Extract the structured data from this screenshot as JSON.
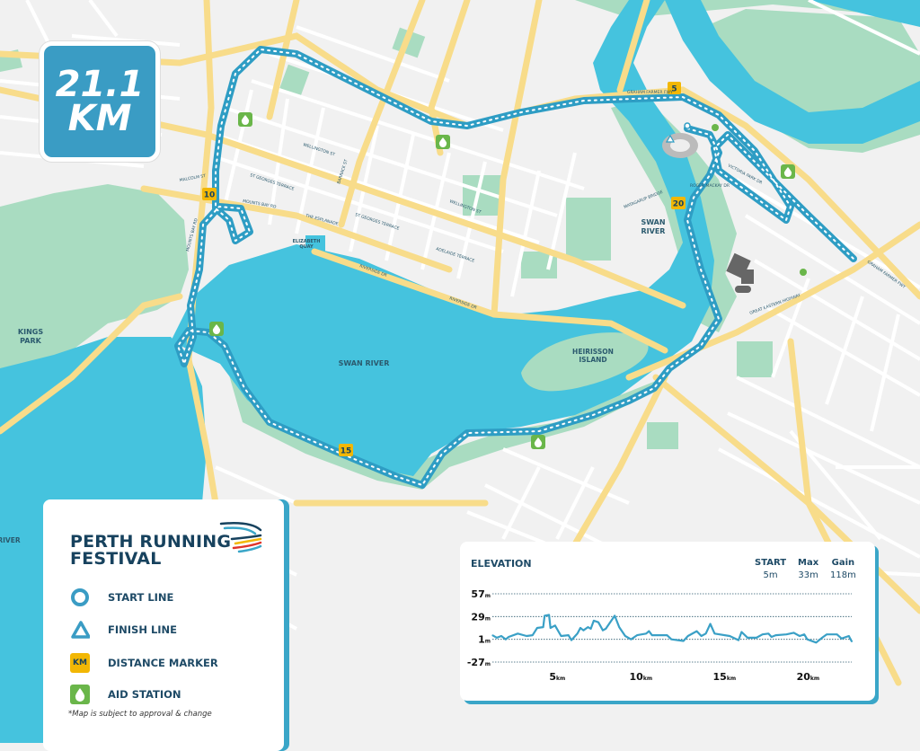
{
  "badge": {
    "distance": "21.1",
    "unit": "KM"
  },
  "colors": {
    "water": "#45c3de",
    "park": "#a9dcc1",
    "road": "#f8dc8a",
    "route": "#2e9dc4",
    "marker": "#f2b705",
    "aid": "#6ab64a",
    "navy": "#17425e"
  },
  "map_labels": {
    "kings_park": [
      "KINGS",
      "PARK"
    ],
    "swan_river_main": "SWAN RIVER",
    "swan_river_north": [
      "SWAN",
      "RIVER"
    ],
    "heirisson_island": [
      "HEIRISSON",
      "ISLAND"
    ],
    "elizabeth_quay": [
      "ELIZABETH",
      "QUAY"
    ],
    "river_left": "RIVER",
    "streets": {
      "riverside_dr_1": "RIVERSIDE DR",
      "riverside_dr_2": "RIVERSIDE DR",
      "wellington_st_1": "WELLINGTON ST",
      "wellington_st_2": "WELLINGTON ST",
      "st_georges_tce": "ST GEORGES TERRACE",
      "st_georges_tce_2": "ST GEORGES TERRACE",
      "mounts_bay_rd": "MOUNTS BAY RD",
      "the_esplanade": "THE ESPLANADE",
      "adelaide_tce": "ADELAIDE TERRACE",
      "barrack_st": "BARRACK ST",
      "graham_farmer_fwy": "GRAHAM FARMER FWY",
      "graham_farmer_fwy_2": "GRAHAM FARMER FWY",
      "great_eastern_hwy": "GREAT EASTERN HIGHWAY",
      "victoria_park_dr": "VICTORIA PARK DR",
      "matagarup_bridge": "MATAGARUP BRIDGE",
      "roger_mackay_dr": "ROGER MACKAY DR",
      "malcolm_st": "MALCOLM ST",
      "mounts_bay_rd_2": "MOUNTS BAY RD"
    }
  },
  "distance_markers": [
    "5",
    "10",
    "15",
    "20"
  ],
  "legend": {
    "logo_line1": "PERTH RUNNING",
    "logo_line2": "FESTIVAL",
    "items": [
      {
        "icon": "circle-outline-icon",
        "label": "START LINE"
      },
      {
        "icon": "triangle-outline-icon",
        "label": "FINISH LINE"
      },
      {
        "icon": "km-marker-icon",
        "icon_text": "KM",
        "label": "DISTANCE MARKER"
      },
      {
        "icon": "water-drop-icon",
        "label": "AID STATION"
      }
    ],
    "note": "*Map is subject to approval & change"
  },
  "elevation": {
    "title": "ELEVATION",
    "stats": [
      {
        "label": "START",
        "value": "5m"
      },
      {
        "label": "Max",
        "value": "33m"
      },
      {
        "label": "Gain",
        "value": "118m"
      }
    ]
  },
  "chart_data": {
    "type": "line",
    "title": "ELEVATION",
    "xlabel": "",
    "ylabel": "",
    "x_unit": "km",
    "y_unit": "m",
    "xlim": [
      0.9,
      22.4
    ],
    "ylim": [
      -27,
      57
    ],
    "y_ticks": [
      57,
      29,
      1,
      -27
    ],
    "x_ticks": [
      5,
      10,
      15,
      20
    ],
    "grid": "horizontal dotted",
    "x": [
      0.9,
      1.17,
      1.44,
      1.7,
      1.88,
      2.42,
      2.95,
      3.31,
      3.58,
      3.94,
      4.03,
      4.29,
      4.38,
      4.65,
      5.01,
      5.45,
      5.63,
      5.99,
      6.17,
      6.35,
      6.62,
      6.79,
      6.97,
      7.24,
      7.51,
      7.69,
      8.22,
      8.49,
      8.85,
      9.2,
      9.56,
      10.1,
      10.27,
      10.45,
      10.81,
      11.35,
      11.61,
      12.33,
      12.6,
      13.13,
      13.4,
      13.67,
      13.94,
      14.2,
      15.1,
      15.63,
      15.81,
      16.17,
      16.7,
      17.06,
      17.42,
      17.6,
      17.86,
      18.49,
      18.93,
      19.29,
      19.56,
      19.74,
      20.27,
      20.63,
      20.9,
      21.52,
      21.79,
      22.23,
      22.41
    ],
    "y": [
      6,
      3,
      5,
      1,
      4,
      8,
      5,
      6,
      15,
      16,
      30,
      31,
      15,
      18,
      5,
      6,
      0,
      8,
      15,
      12,
      16,
      14,
      24,
      22,
      12,
      14,
      30,
      16,
      5,
      1,
      6,
      8,
      11,
      6,
      6,
      6,
      1,
      -1,
      5,
      11,
      5,
      8,
      20,
      8,
      5,
      0,
      10,
      3,
      3,
      7,
      8,
      4,
      6,
      7,
      9,
      5,
      7,
      1,
      -3,
      3,
      7,
      7,
      2,
      5,
      -2
    ]
  }
}
